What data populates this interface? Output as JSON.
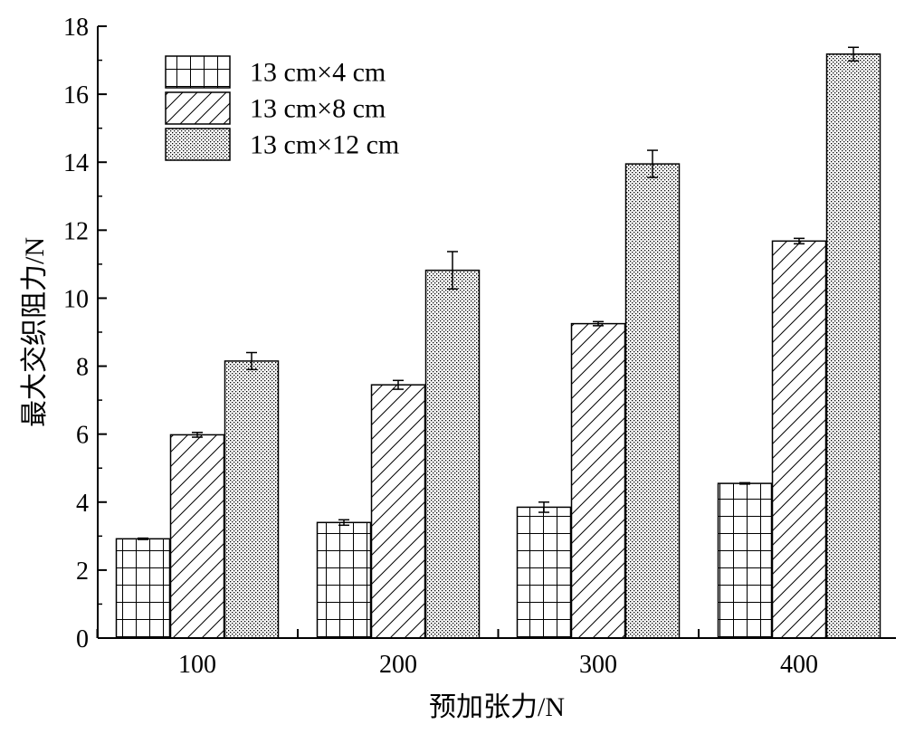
{
  "chart_data": {
    "type": "bar",
    "title": "",
    "xlabel": "预加张力/N",
    "ylabel": "最大交织阻力/N",
    "categories": [
      "100",
      "200",
      "300",
      "400"
    ],
    "ylim": [
      0,
      18
    ],
    "yticks": [
      0,
      2,
      4,
      6,
      8,
      10,
      12,
      14,
      16,
      18
    ],
    "grid": false,
    "legend_position": "top-left",
    "series": [
      {
        "name": "13 cm×4 cm",
        "pattern": "grid",
        "values": [
          2.92,
          3.4,
          3.85,
          4.55
        ],
        "errors": [
          0.02,
          0.08,
          0.15,
          0.02
        ]
      },
      {
        "name": "13 cm×8 cm",
        "pattern": "diagonal",
        "values": [
          5.98,
          7.45,
          9.25,
          11.68
        ],
        "errors": [
          0.07,
          0.13,
          0.06,
          0.08
        ]
      },
      {
        "name": "13 cm×12 cm",
        "pattern": "dots",
        "values": [
          8.15,
          10.82,
          13.95,
          17.18
        ],
        "errors": [
          0.25,
          0.55,
          0.4,
          0.2
        ]
      }
    ]
  }
}
